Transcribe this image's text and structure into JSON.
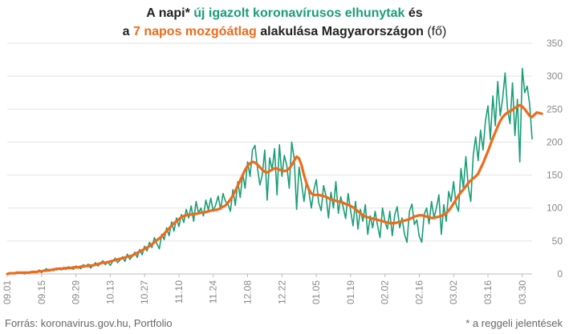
{
  "chart_data": {
    "type": "line",
    "title": {
      "line1_a": "A napi* ",
      "line1_green": "új igazolt koronavírusos elhunytak",
      "line1_b": " és",
      "line2_a": "a ",
      "line2_orange": "7 napos mozgóátlag",
      "line2_b": " alakulása Magyarországon",
      "line2_unit": " (fő)"
    },
    "ylim": [
      0,
      350
    ],
    "yticks": [
      0,
      50,
      100,
      150,
      200,
      250,
      300,
      350
    ],
    "xticks": [
      "09.01",
      "09.15",
      "09.29",
      "10.13",
      "10.27",
      "11.10",
      "11.24",
      "12.08",
      "12.22",
      "01.05",
      "01.19",
      "02.02",
      "02.16",
      "03.02",
      "03.16",
      "03.30"
    ],
    "colors": {
      "daily": "#1a9e78",
      "avg": "#f06a1a",
      "grid": "#e3e3e3"
    },
    "series": [
      {
        "name": "Napi új elhunytak",
        "values": [
          0,
          1,
          2,
          0,
          3,
          1,
          2,
          0,
          2,
          3,
          2,
          4,
          3,
          6,
          2,
          5,
          8,
          4,
          7,
          5,
          9,
          8,
          6,
          10,
          7,
          11,
          9,
          7,
          12,
          10,
          8,
          14,
          11,
          15,
          9,
          13,
          17,
          12,
          16,
          20,
          14,
          18,
          13,
          19,
          24,
          17,
          21,
          26,
          19,
          30,
          22,
          27,
          33,
          25,
          37,
          29,
          42,
          35,
          48,
          40,
          55,
          46,
          38,
          60,
          52,
          70,
          58,
          79,
          65,
          85,
          72,
          90,
          78,
          98,
          85,
          103,
          80,
          110,
          92,
          100,
          88,
          112,
          97,
          115,
          95,
          105,
          118,
          98,
          122,
          110,
          106,
          95,
          128,
          104,
          140,
          116,
          152,
          130,
          170,
          148,
          188,
          195,
          162,
          135,
          150,
          188,
          112,
          176,
          158,
          190,
          120,
          196,
          148,
          180,
          164,
          130,
          200,
          175,
          98,
          162,
          138,
          110,
          140,
          124,
          100,
          127,
          143,
          108,
          96,
          134,
          118,
          85,
          124,
          100,
          140,
          92,
          117,
          101,
          84,
          122,
          96,
          73,
          110,
          68,
          98,
          80,
          105,
          60,
          88,
          70,
          95,
          73,
          55,
          100,
          80,
          68,
          95,
          58,
          90,
          102,
          70,
          85,
          60,
          48,
          95,
          106,
          75,
          82,
          57,
          48,
          90,
          100,
          76,
          110,
          85,
          100,
          120,
          60,
          105,
          80,
          125,
          110,
          140,
          105,
          95,
          160,
          130,
          178,
          132,
          110,
          180,
          208,
          172,
          218,
          188,
          232,
          255,
          204,
          270,
          225,
          292,
          240,
          266,
          305,
          250,
          228,
          290,
          210,
          265,
          170,
          312,
          275,
          285,
          258,
          205
        ]
      },
      {
        "name": "7 napos mozgóátlag",
        "values": [
          0,
          1,
          1,
          1,
          2,
          2,
          2,
          2,
          2,
          2,
          3,
          3,
          3,
          4,
          4,
          5,
          5,
          6,
          6,
          7,
          7,
          8,
          8,
          8,
          9,
          9,
          9,
          10,
          10,
          10,
          11,
          11,
          12,
          12,
          13,
          13,
          14,
          15,
          16,
          17,
          17,
          18,
          19,
          20,
          21,
          22,
          23,
          24,
          25,
          26,
          27,
          28,
          30,
          32,
          34,
          36,
          38,
          40,
          42,
          45,
          48,
          51,
          54,
          57,
          61,
          65,
          69,
          73,
          77,
          80,
          83,
          86,
          88,
          89,
          90,
          90,
          91,
          91,
          92,
          93,
          93,
          94,
          95,
          96,
          97,
          97,
          98,
          100,
          102,
          104,
          108,
          113,
          119,
          126,
          134,
          142,
          150,
          158,
          164,
          168,
          170,
          169,
          166,
          162,
          158,
          155,
          154,
          156,
          158,
          160,
          160,
          158,
          157,
          156,
          157,
          160,
          165,
          172,
          178,
          175,
          165,
          150,
          138,
          128,
          122,
          120,
          120,
          120,
          119,
          118,
          117,
          115,
          113,
          112,
          111,
          110,
          109,
          108,
          106,
          105,
          103,
          101,
          98,
          95,
          92,
          89,
          87,
          86,
          85,
          84,
          83,
          82,
          81,
          80,
          79,
          78,
          77,
          77,
          77,
          78,
          79,
          80,
          81,
          82,
          83,
          85,
          87,
          88,
          89,
          89,
          88,
          87,
          86,
          85,
          85,
          86,
          87,
          88,
          90,
          92,
          96,
          101,
          107,
          113,
          119,
          124,
          128,
          133,
          138,
          142,
          145,
          148,
          152,
          160,
          168,
          177,
          186,
          196,
          206,
          215,
          224,
          232,
          238,
          242,
          245,
          247,
          249,
          252,
          254,
          256,
          254,
          250,
          245,
          240,
          238,
          242,
          245,
          244,
          243
        ]
      }
    ]
  },
  "footer": {
    "source": "Forrás: koronavirus.gov.hu, Portfolio",
    "note": "* a reggeli jelentések"
  }
}
